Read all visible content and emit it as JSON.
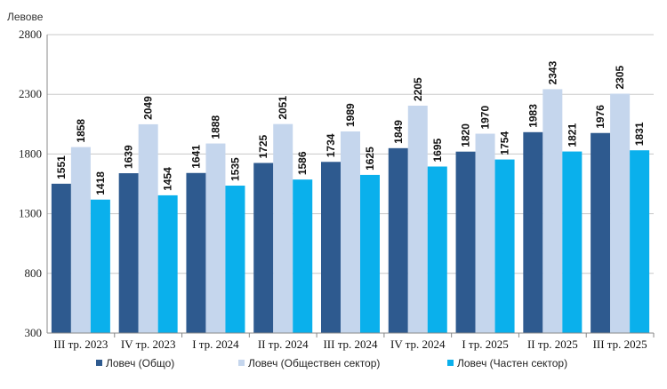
{
  "chart_data": {
    "type": "bar",
    "ylabel": "Левове",
    "ylim": [
      300,
      2800
    ],
    "yticks": [
      300,
      800,
      1300,
      1800,
      2300,
      2800
    ],
    "grid": true,
    "legend_position": "bottom",
    "categories": [
      "III тр. 2023",
      "IV тр. 2023",
      "I тр. 2024",
      "II тр. 2024",
      "III тр. 2024",
      "IV тр. 2024",
      "I тр. 2025",
      "II тр. 2025",
      "III тр. 2025"
    ],
    "series": [
      {
        "name": "Ловеч (Общо)",
        "color": "#2e5a8f",
        "values": [
          1551,
          1639,
          1641,
          1725,
          1734,
          1849,
          1820,
          1983,
          1976
        ]
      },
      {
        "name": "Ловеч (Обществен сектор)",
        "color": "#c5d6ed",
        "values": [
          1858,
          2049,
          1888,
          2051,
          1989,
          2205,
          1970,
          2343,
          2305
        ]
      },
      {
        "name": "Ловеч (Частен сектор)",
        "color": "#0ab0ec",
        "values": [
          1418,
          1454,
          1535,
          1586,
          1625,
          1695,
          1754,
          1821,
          1831
        ]
      }
    ]
  }
}
